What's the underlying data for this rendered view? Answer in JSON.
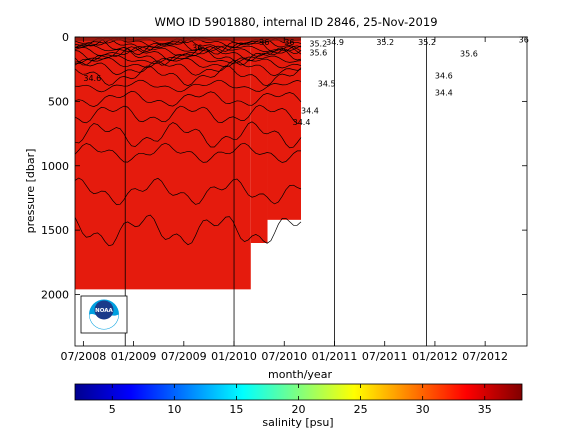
{
  "chart_data": {
    "type": "heatmap",
    "title": "WMO ID 5901880, internal ID 2846, 25-Nov-2019",
    "xlabel": "month/year",
    "ylabel": "pressure [dbar]",
    "x_ticks": [
      "07/2008",
      "01/2009",
      "07/2009",
      "01/2010",
      "07/2010",
      "01/2011",
      "07/2011",
      "01/2012",
      "07/2012"
    ],
    "x_range": [
      "2008-06",
      "2012-12"
    ],
    "y_ticks": [
      0,
      500,
      1000,
      1500,
      2000
    ],
    "y_range": [
      0,
      2400
    ],
    "y_reversed": true,
    "colorbar": {
      "label": "salinity [psu]",
      "ticks": [
        5,
        10,
        15,
        20,
        25,
        30,
        35
      ],
      "range": [
        2,
        38
      ],
      "colormap": "jet"
    },
    "fill_color": "#e51b0d",
    "data_regions": [
      {
        "from": "2008-06",
        "to": "2010-03",
        "pmin": 0,
        "pmax": 1960
      },
      {
        "from": "2010-03",
        "to": "2010-05",
        "pmin": 0,
        "pmax": 1600
      },
      {
        "from": "2010-05",
        "to": "2010-09",
        "pmin": 0,
        "pmax": 1420
      }
    ],
    "separator_dates": [
      "2008-12",
      "2010-01",
      "2011-01",
      "2011-12"
    ],
    "contour_labels": [
      {
        "text": "36",
        "date": "2009-08",
        "p": 80
      },
      {
        "text": "36",
        "date": "2010-04",
        "p": 40
      },
      {
        "text": "36",
        "date": "2010-07",
        "p": 40
      },
      {
        "text": "35.2",
        "date": "2010-10",
        "p": 50
      },
      {
        "text": "34.9",
        "date": "2010-12",
        "p": 40
      },
      {
        "text": "35.6",
        "date": "2010-10",
        "p": 120
      },
      {
        "text": "34.6",
        "date": "2008-07",
        "p": 320
      },
      {
        "text": "34.5",
        "date": "2010-11",
        "p": 360
      },
      {
        "text": "34.4",
        "date": "2010-09",
        "p": 570
      },
      {
        "text": "34.4",
        "date": "2010-08",
        "p": 660
      },
      {
        "text": "35.2",
        "date": "2011-06",
        "p": 40
      },
      {
        "text": "35.2",
        "date": "2011-11",
        "p": 40
      },
      {
        "text": "35.6",
        "date": "2012-04",
        "p": 130
      },
      {
        "text": "34.6",
        "date": "2012-01",
        "p": 300
      },
      {
        "text": "34.4",
        "date": "2012-01",
        "p": 430
      },
      {
        "text": "36",
        "date": "2012-11",
        "p": 20
      }
    ],
    "logo": "noaa-logo"
  }
}
